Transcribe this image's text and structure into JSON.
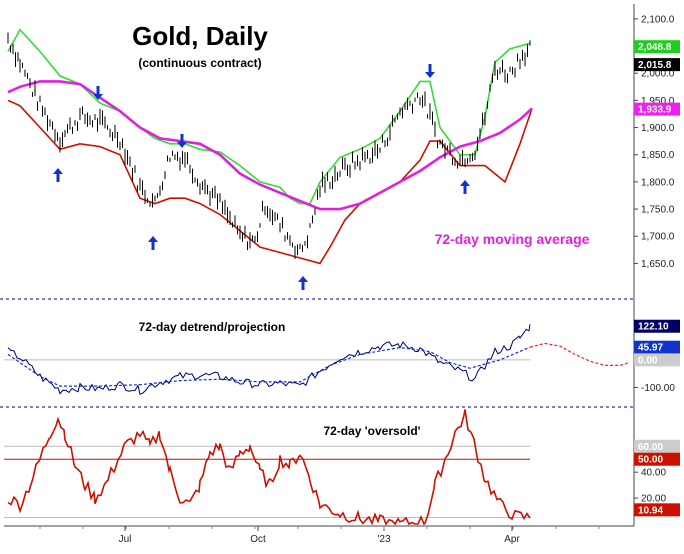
{
  "chart_data": [
    {
      "type": "line",
      "title": "Gold, Daily",
      "subtitle": "(continuous contract)",
      "annotation": "72-day moving average",
      "ylim": [
        1590,
        2120
      ],
      "yticks": [
        "2,100.0",
        "2,050.0",
        "2,000.0",
        "1,950.0",
        "1,900.0",
        "1,850.0",
        "1,800.0",
        "1,750.0",
        "1,700.0",
        "1,650.0"
      ],
      "ytick_values": [
        2100,
        2050,
        2000,
        1950,
        1900,
        1850,
        1800,
        1750,
        1700,
        1650
      ],
      "xticks": [
        "Jul",
        "Oct",
        "'23",
        "Apr"
      ],
      "xtick_positions": [
        125,
        258,
        384,
        512
      ],
      "price_path": [
        [
          8,
          2065
        ],
        [
          20,
          2020
        ],
        [
          40,
          1940
        ],
        [
          60,
          1880
        ],
        [
          80,
          1920
        ],
        [
          100,
          1910
        ],
        [
          120,
          1880
        ],
        [
          140,
          1790
        ],
        [
          155,
          1760
        ],
        [
          170,
          1850
        ],
        [
          185,
          1845
        ],
        [
          200,
          1800
        ],
        [
          220,
          1760
        ],
        [
          240,
          1700
        ],
        [
          255,
          1690
        ],
        [
          265,
          1760
        ],
        [
          280,
          1720
        ],
        [
          300,
          1670
        ],
        [
          310,
          1710
        ],
        [
          320,
          1790
        ],
        [
          340,
          1820
        ],
        [
          360,
          1840
        ],
        [
          380,
          1860
        ],
        [
          400,
          1930
        ],
        [
          420,
          1960
        ],
        [
          430,
          1920
        ],
        [
          440,
          1870
        ],
        [
          460,
          1840
        ],
        [
          475,
          1860
        ],
        [
          485,
          1920
        ],
        [
          495,
          2010
        ],
        [
          510,
          2000
        ],
        [
          520,
          2030
        ],
        [
          530,
          2048
        ]
      ],
      "upper_band": [
        [
          8,
          2040
        ],
        [
          20,
          2080
        ],
        [
          40,
          2040
        ],
        [
          60,
          1995
        ],
        [
          80,
          1980
        ],
        [
          100,
          1945
        ],
        [
          120,
          1930
        ],
        [
          140,
          1900
        ],
        [
          155,
          1880
        ],
        [
          170,
          1870
        ],
        [
          185,
          1870
        ],
        [
          200,
          1860
        ],
        [
          220,
          1855
        ],
        [
          240,
          1830
        ],
        [
          260,
          1800
        ],
        [
          280,
          1790
        ],
        [
          290,
          1770
        ],
        [
          300,
          1760
        ],
        [
          310,
          1760
        ],
        [
          320,
          1800
        ],
        [
          340,
          1845
        ],
        [
          360,
          1860
        ],
        [
          380,
          1880
        ],
        [
          400,
          1930
        ],
        [
          420,
          1985
        ],
        [
          430,
          1985
        ],
        [
          440,
          1900
        ],
        [
          460,
          1850
        ],
        [
          475,
          1850
        ],
        [
          485,
          1920
        ],
        [
          495,
          2020
        ],
        [
          510,
          2045
        ],
        [
          530,
          2055
        ]
      ],
      "lower_band": [
        [
          8,
          1950
        ],
        [
          20,
          1940
        ],
        [
          40,
          1900
        ],
        [
          60,
          1860
        ],
        [
          80,
          1870
        ],
        [
          100,
          1865
        ],
        [
          120,
          1850
        ],
        [
          140,
          1770
        ],
        [
          155,
          1760
        ],
        [
          170,
          1770
        ],
        [
          185,
          1770
        ],
        [
          200,
          1760
        ],
        [
          220,
          1740
        ],
        [
          240,
          1710
        ],
        [
          260,
          1680
        ],
        [
          280,
          1670
        ],
        [
          300,
          1660
        ],
        [
          320,
          1650
        ],
        [
          330,
          1680
        ],
        [
          345,
          1730
        ],
        [
          360,
          1760
        ],
        [
          380,
          1780
        ],
        [
          400,
          1800
        ],
        [
          420,
          1840
        ],
        [
          430,
          1875
        ],
        [
          440,
          1875
        ],
        [
          460,
          1830
        ],
        [
          475,
          1830
        ],
        [
          485,
          1830
        ],
        [
          495,
          1815
        ],
        [
          505,
          1800
        ],
        [
          520,
          1870
        ],
        [
          532,
          1935
        ]
      ],
      "moving_average": [
        [
          8,
          1965
        ],
        [
          20,
          1975
        ],
        [
          40,
          1985
        ],
        [
          60,
          1985
        ],
        [
          80,
          1980
        ],
        [
          100,
          1955
        ],
        [
          120,
          1930
        ],
        [
          140,
          1900
        ],
        [
          160,
          1880
        ],
        [
          180,
          1875
        ],
        [
          200,
          1870
        ],
        [
          220,
          1850
        ],
        [
          240,
          1815
        ],
        [
          260,
          1795
        ],
        [
          280,
          1780
        ],
        [
          300,
          1765
        ],
        [
          320,
          1750
        ],
        [
          340,
          1750
        ],
        [
          360,
          1760
        ],
        [
          380,
          1780
        ],
        [
          400,
          1800
        ],
        [
          420,
          1820
        ],
        [
          440,
          1845
        ],
        [
          460,
          1865
        ],
        [
          480,
          1875
        ],
        [
          500,
          1890
        ],
        [
          520,
          1915
        ],
        [
          532,
          1935
        ]
      ],
      "down_arrows_x": [
        98,
        182,
        430
      ],
      "up_arrows_x": [
        58,
        153,
        303,
        465
      ],
      "badges": [
        {
          "label": "2,100.0",
          "value": 2100,
          "bg": "#ffffff",
          "fg": "#000000",
          "show_tick": true
        },
        {
          "label": "2,048.8",
          "value": 2048.8,
          "bg": "#22cc22",
          "fg": "#ffffff"
        },
        {
          "label": "2,015.8",
          "value": 2015.8,
          "bg": "#000000",
          "fg": "#ffffff"
        },
        {
          "label": "1,933.9",
          "value": 1933.9,
          "bg": "#ee22ee",
          "fg": "#ffffff"
        }
      ],
      "colors": {
        "upper": "#33dd33",
        "lower": "#cc1100",
        "ma": "#dd22dd",
        "price": "#000000",
        "arrow": "#1133cc"
      }
    },
    {
      "type": "line",
      "title": "72-day detrend/projection",
      "ylim": [
        -160,
        210
      ],
      "yticks": [
        "-100.00"
      ],
      "ytick_values": [
        -100
      ],
      "zero_value": 0,
      "detrend_path": [
        [
          8,
          30
        ],
        [
          20,
          10
        ],
        [
          40,
          -60
        ],
        [
          60,
          -110
        ],
        [
          80,
          -100
        ],
        [
          100,
          -105
        ],
        [
          120,
          -90
        ],
        [
          140,
          -110
        ],
        [
          160,
          -80
        ],
        [
          180,
          -60
        ],
        [
          200,
          -55
        ],
        [
          220,
          -60
        ],
        [
          240,
          -80
        ],
        [
          260,
          -90
        ],
        [
          280,
          -85
        ],
        [
          300,
          -95
        ],
        [
          320,
          -40
        ],
        [
          340,
          10
        ],
        [
          360,
          30
        ],
        [
          380,
          50
        ],
        [
          400,
          55
        ],
        [
          420,
          40
        ],
        [
          440,
          -10
        ],
        [
          460,
          -40
        ],
        [
          475,
          -70
        ],
        [
          485,
          -20
        ],
        [
          495,
          30
        ],
        [
          510,
          50
        ],
        [
          520,
          80
        ],
        [
          530,
          122
        ]
      ],
      "smooth_path": [
        [
          8,
          20
        ],
        [
          40,
          -60
        ],
        [
          60,
          -95
        ],
        [
          100,
          -95
        ],
        [
          140,
          -90
        ],
        [
          180,
          -75
        ],
        [
          220,
          -70
        ],
        [
          260,
          -80
        ],
        [
          300,
          -80
        ],
        [
          330,
          -20
        ],
        [
          360,
          20
        ],
        [
          400,
          45
        ],
        [
          430,
          30
        ],
        [
          450,
          -10
        ],
        [
          470,
          -30
        ],
        [
          500,
          0
        ],
        [
          530,
          46
        ]
      ],
      "projection_path": [
        [
          530,
          46
        ],
        [
          545,
          60
        ],
        [
          560,
          50
        ],
        [
          575,
          20
        ],
        [
          590,
          -5
        ],
        [
          605,
          -20
        ],
        [
          620,
          -20
        ],
        [
          630,
          -10
        ]
      ],
      "badges": [
        {
          "label": "122.10",
          "value": 122.1,
          "bg": "#000066",
          "fg": "#ffffff"
        },
        {
          "label": "45.97",
          "value": 45.97,
          "bg": "#1133cc",
          "fg": "#ffffff"
        },
        {
          "label": "0.00",
          "value": 0,
          "bg": "#cccccc",
          "fg": "#ffffff"
        }
      ],
      "colors": {
        "detrend": "#000066",
        "smooth": "#1133cc",
        "projection": "#ee2222",
        "zero": "#bbbbbb"
      }
    },
    {
      "type": "line",
      "title": "72-day 'oversold'",
      "ylim": [
        0,
        88
      ],
      "yticks": [
        "40.00",
        "20.00"
      ],
      "ytick_values": [
        40,
        20
      ],
      "ref_lines": [
        60,
        50
      ],
      "oversold_path": [
        [
          8,
          20
        ],
        [
          20,
          15
        ],
        [
          30,
          30
        ],
        [
          40,
          50
        ],
        [
          50,
          70
        ],
        [
          58,
          82
        ],
        [
          65,
          70
        ],
        [
          75,
          45
        ],
        [
          85,
          30
        ],
        [
          95,
          20
        ],
        [
          105,
          30
        ],
        [
          115,
          45
        ],
        [
          125,
          60
        ],
        [
          140,
          70
        ],
        [
          150,
          60
        ],
        [
          160,
          70
        ],
        [
          170,
          40
        ],
        [
          180,
          20
        ],
        [
          190,
          15
        ],
        [
          200,
          30
        ],
        [
          210,
          55
        ],
        [
          220,
          60
        ],
        [
          230,
          40
        ],
        [
          240,
          55
        ],
        [
          250,
          60
        ],
        [
          260,
          40
        ],
        [
          270,
          30
        ],
        [
          280,
          50
        ],
        [
          290,
          45
        ],
        [
          300,
          55
        ],
        [
          310,
          35
        ],
        [
          320,
          15
        ],
        [
          340,
          8
        ],
        [
          360,
          4
        ],
        [
          380,
          2
        ],
        [
          400,
          0
        ],
        [
          425,
          2
        ],
        [
          435,
          30
        ],
        [
          445,
          50
        ],
        [
          455,
          70
        ],
        [
          465,
          84
        ],
        [
          475,
          60
        ],
        [
          485,
          35
        ],
        [
          500,
          15
        ],
        [
          515,
          6
        ],
        [
          530,
          5
        ]
      ],
      "badges": [
        {
          "label": "60.00",
          "value": 60,
          "bg": "#cccccc",
          "fg": "#ffffff"
        },
        {
          "label": "50.00",
          "value": 50,
          "bg": "#cc1100",
          "fg": "#ffffff"
        },
        {
          "label": "10.94",
          "value": 10.94,
          "bg": "#cc1100",
          "fg": "#ffffff"
        }
      ],
      "colors": {
        "line": "#cc1100",
        "ref60": "#bbbbbb",
        "ref50": "#cc1100"
      }
    }
  ]
}
